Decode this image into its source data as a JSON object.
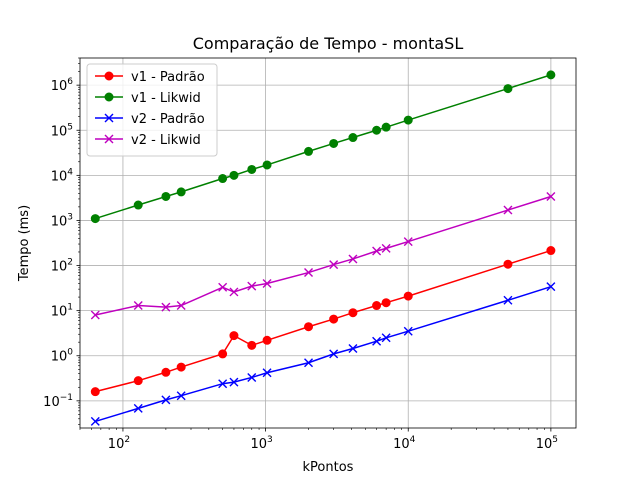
{
  "chart_data": {
    "type": "line",
    "title": "Comparação de Tempo - montaSL",
    "xlabel": "kPontos",
    "ylabel": "Tempo (ms)",
    "xscale": "log",
    "yscale": "log",
    "xlim": [
      50,
      150000
    ],
    "ylim": [
      0.025,
      4000000
    ],
    "grid": true,
    "legend_position": "top-left",
    "x_ticks": [
      {
        "base": "10",
        "exp": "2",
        "value": 100
      },
      {
        "base": "10",
        "exp": "3",
        "value": 1000
      },
      {
        "base": "10",
        "exp": "4",
        "value": 10000
      },
      {
        "base": "10",
        "exp": "5",
        "value": 100000
      }
    ],
    "y_ticks": [
      {
        "base": "10",
        "exp": "−1",
        "value": 0.1
      },
      {
        "base": "10",
        "exp": "0",
        "value": 1
      },
      {
        "base": "10",
        "exp": "1",
        "value": 10
      },
      {
        "base": "10",
        "exp": "2",
        "value": 100
      },
      {
        "base": "10",
        "exp": "3",
        "value": 1000
      },
      {
        "base": "10",
        "exp": "4",
        "value": 10000
      },
      {
        "base": "10",
        "exp": "5",
        "value": 100000
      },
      {
        "base": "10",
        "exp": "6",
        "value": 1000000
      }
    ],
    "x": [
      64,
      128,
      200,
      256,
      500,
      600,
      800,
      1024,
      2000,
      3000,
      4096,
      6000,
      7000,
      10000,
      50000,
      100000
    ],
    "series": [
      {
        "name": "v1 - Padrão",
        "color": "#ff0000",
        "marker": "circle",
        "values": [
          0.16,
          0.28,
          0.43,
          0.56,
          1.1,
          2.8,
          1.7,
          2.2,
          4.4,
          6.5,
          9.0,
          13,
          15,
          21,
          107,
          215
        ]
      },
      {
        "name": "v1 - Likwid",
        "color": "#008000",
        "marker": "circle",
        "values": [
          1100,
          2200,
          3400,
          4300,
          8500,
          10000,
          13500,
          17000,
          34000,
          51000,
          69000,
          100000,
          117000,
          168000,
          840000,
          1690000
        ]
      },
      {
        "name": "v2 - Padrão",
        "color": "#0000ff",
        "marker": "x",
        "values": [
          0.035,
          0.068,
          0.105,
          0.13,
          0.24,
          0.26,
          0.33,
          0.42,
          0.7,
          1.1,
          1.45,
          2.1,
          2.5,
          3.5,
          17,
          34
        ]
      },
      {
        "name": "v2 - Likwid",
        "color": "#bf00bf",
        "marker": "x",
        "values": [
          8.0,
          13,
          12,
          13,
          33,
          26,
          35,
          40,
          70,
          105,
          140,
          210,
          240,
          340,
          1700,
          3400
        ]
      }
    ]
  }
}
